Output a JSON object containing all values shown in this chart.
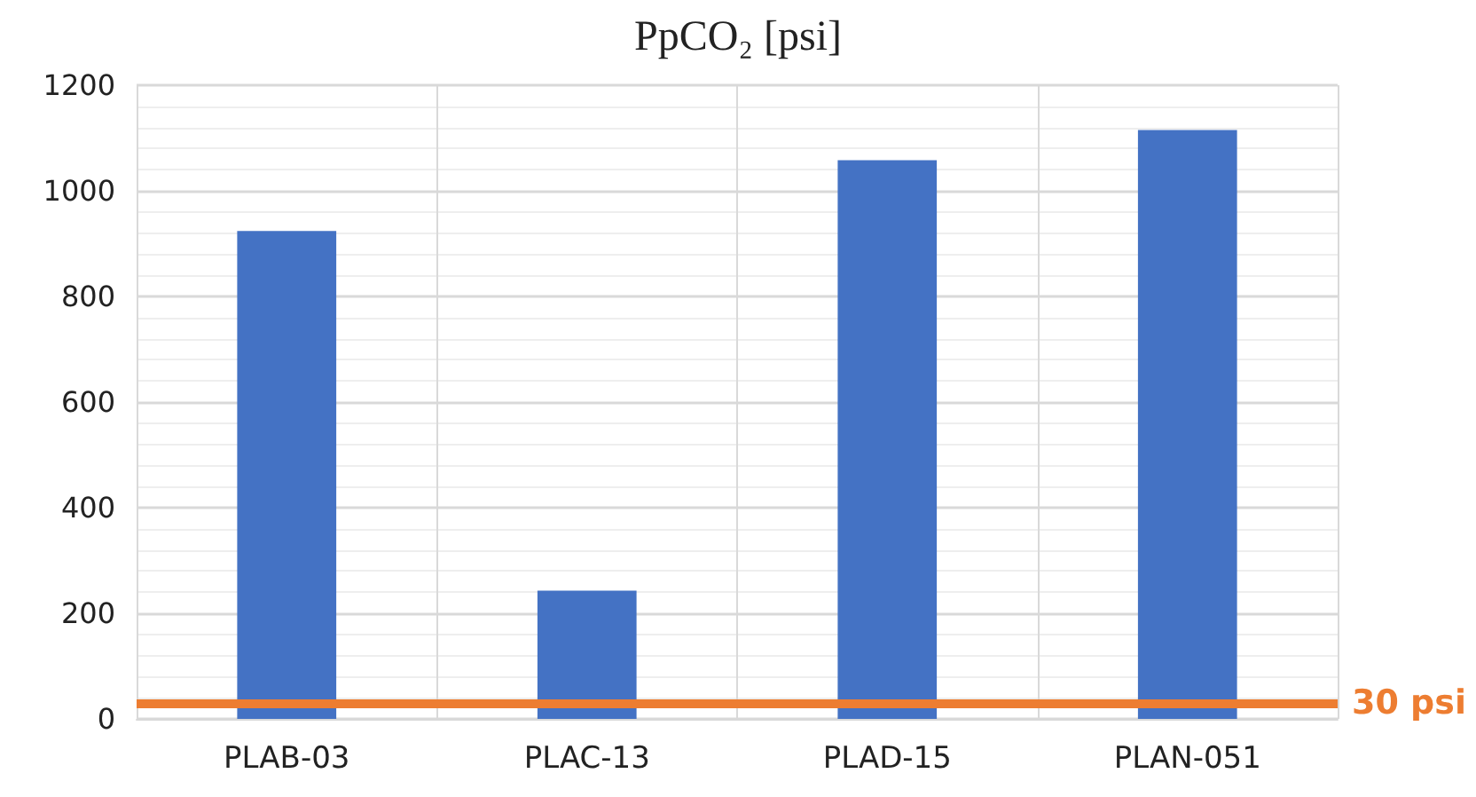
{
  "chart_data": {
    "type": "bar",
    "title": "PpCO₂ [psi]",
    "categories": [
      "PLAB-03",
      "PLAC-13",
      "PLAD-15",
      "PLAN-051"
    ],
    "values": [
      924,
      243,
      1058,
      1115
    ],
    "color": "#4472c4",
    "ylim": [
      0,
      1200
    ],
    "yticks": [
      0,
      200,
      400,
      600,
      800,
      1000,
      1200
    ],
    "grid": true,
    "ref_lines": [
      {
        "axis": "y",
        "value": 30,
        "label": "30 psi",
        "color": "#ed7d31"
      }
    ]
  }
}
